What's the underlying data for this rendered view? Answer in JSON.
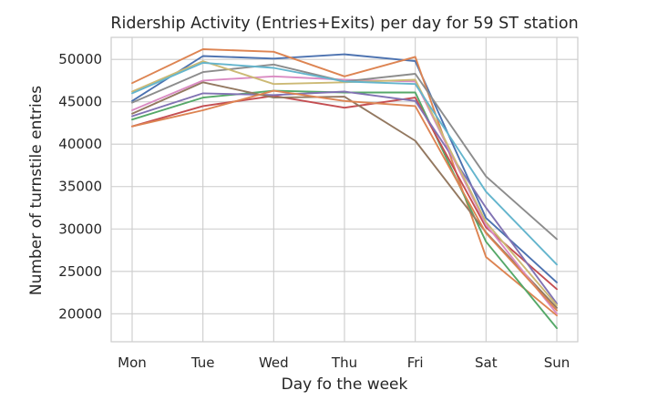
{
  "chart_data": {
    "type": "line",
    "title": "Ridership Activity (Entries+Exits) per day for 59 ST station",
    "xlabel": "Day fo the week",
    "ylabel": "Number of turnstile entries",
    "categories": [
      "Mon",
      "Tue",
      "Wed",
      "Thu",
      "Fri",
      "Sat",
      "Sun"
    ],
    "ylim": [
      16700,
      52600
    ],
    "yticks": [
      20000,
      25000,
      30000,
      35000,
      40000,
      45000,
      50000
    ],
    "ytick_labels": [
      "20000",
      "25000",
      "30000",
      "35000",
      "40000",
      "45000",
      "50000"
    ],
    "grid": true,
    "series": [
      {
        "color": "#4c72b0",
        "values": [
          45100,
          50400,
          50100,
          50600,
          49800,
          31300,
          23700
        ]
      },
      {
        "color": "#dd8452",
        "values": [
          47200,
          51200,
          50900,
          48000,
          50300,
          26700,
          19800
        ]
      },
      {
        "color": "#55a868",
        "values": [
          42900,
          45500,
          46300,
          46100,
          46100,
          28500,
          18300
        ]
      },
      {
        "color": "#c44e52",
        "values": [
          42100,
          44500,
          45700,
          44300,
          45500,
          30200,
          22900
        ]
      },
      {
        "color": "#8172b3",
        "values": [
          43300,
          46000,
          45800,
          46200,
          45100,
          32500,
          21200
        ]
      },
      {
        "color": "#937860",
        "values": [
          43600,
          47300,
          45500,
          45600,
          40400,
          29600,
          20700
        ]
      },
      {
        "color": "#da8bc3",
        "values": [
          44000,
          47500,
          48000,
          47600,
          47400,
          30500,
          20000
        ]
      },
      {
        "color": "#8c8c8c",
        "values": [
          44900,
          48500,
          49400,
          47400,
          48300,
          36200,
          28800
        ]
      },
      {
        "color": "#ccb974",
        "values": [
          46200,
          49800,
          47100,
          47300,
          47600,
          30800,
          21000
        ]
      },
      {
        "color": "#64b5cd",
        "values": [
          46000,
          49600,
          49000,
          47400,
          47100,
          34400,
          25800
        ]
      },
      {
        "color": "#dd8452",
        "values": [
          42100,
          44000,
          46300,
          45100,
          44500,
          29500,
          20400
        ]
      }
    ]
  }
}
